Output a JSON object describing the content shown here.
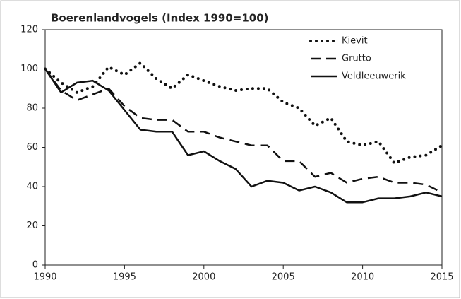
{
  "chart_data": {
    "type": "line",
    "title": "Boerenlandvogels (Index 1990=100)",
    "x": [
      1990,
      1991,
      1992,
      1993,
      1994,
      1995,
      1996,
      1997,
      1998,
      1999,
      2000,
      2001,
      2002,
      2003,
      2004,
      2005,
      2006,
      2007,
      2008,
      2009,
      2010,
      2011,
      2012,
      2013,
      2014,
      2015
    ],
    "series": [
      {
        "name": "Kievit",
        "color": "#111111",
        "line_style": "dotted",
        "values": [
          100,
          93,
          88,
          91,
          101,
          97,
          103,
          95,
          90,
          97,
          94,
          91,
          89,
          90,
          90,
          83,
          80,
          71,
          75,
          63,
          61,
          63,
          52,
          55,
          56,
          61
        ]
      },
      {
        "name": "Grutto",
        "color": "#111111",
        "line_style": "dashed",
        "values": [
          100,
          89,
          84,
          87,
          90,
          81,
          75,
          74,
          74,
          68,
          68,
          65,
          63,
          61,
          61,
          53,
          53,
          45,
          47,
          42,
          44,
          45,
          42,
          42,
          41,
          37
        ]
      },
      {
        "name": "Veldleeuwerik",
        "color": "#111111",
        "line_style": "solid",
        "values": [
          100,
          88,
          93,
          94,
          89,
          79,
          69,
          68,
          68,
          56,
          58,
          53,
          49,
          40,
          43,
          42,
          38,
          40,
          37,
          32,
          32,
          34,
          34,
          35,
          37,
          35
        ]
      }
    ],
    "xlim": [
      1990,
      2015
    ],
    "xticks": [
      1990,
      1995,
      2000,
      2005,
      2010,
      2015
    ],
    "ylim": [
      0,
      120
    ],
    "yticks": [
      0,
      20,
      40,
      60,
      80,
      100,
      120
    ],
    "grid": false,
    "legend": "upper right"
  }
}
